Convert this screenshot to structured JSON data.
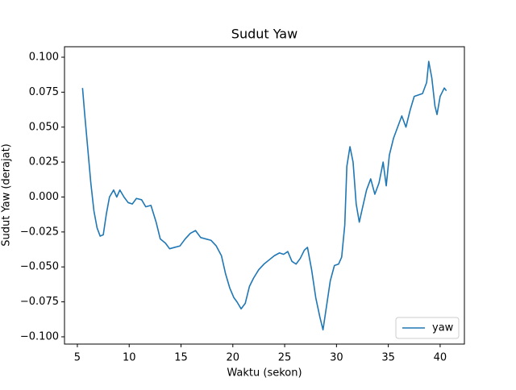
{
  "chart_data": {
    "type": "line",
    "title": "Sudut Yaw",
    "xlabel": "Waktu (sekon)",
    "ylabel": "Sudut Yaw (derajat)",
    "x": [
      5.5,
      5.7,
      6.0,
      6.3,
      6.6,
      6.9,
      7.2,
      7.5,
      7.8,
      8.1,
      8.5,
      8.8,
      9.1,
      9.5,
      9.9,
      10.3,
      10.7,
      11.2,
      11.6,
      12.1,
      12.6,
      13.0,
      13.5,
      13.9,
      14.4,
      14.9,
      15.4,
      15.9,
      16.4,
      16.9,
      17.4,
      17.9,
      18.4,
      18.9,
      19.3,
      19.7,
      20.1,
      20.4,
      20.8,
      21.2,
      21.6,
      22.0,
      22.5,
      23.0,
      23.5,
      24.0,
      24.5,
      24.9,
      25.3,
      25.7,
      26.1,
      26.5,
      26.9,
      27.2,
      27.6,
      28.0,
      28.4,
      28.7,
      29.0,
      29.4,
      29.8,
      30.2,
      30.5,
      30.8,
      31.0,
      31.3,
      31.6,
      31.9,
      32.2,
      32.5,
      32.9,
      33.3,
      33.7,
      34.1,
      34.5,
      34.8,
      35.1,
      35.5,
      35.9,
      36.3,
      36.7,
      37.1,
      37.5,
      37.9,
      38.3,
      38.7,
      38.9,
      39.2,
      39.5,
      39.7,
      40.0,
      40.4,
      40.6
    ],
    "series": [
      {
        "name": "yaw",
        "color": "#1f77b4",
        "values": [
          0.078,
          0.06,
          0.035,
          0.01,
          -0.01,
          -0.022,
          -0.028,
          -0.027,
          -0.012,
          0.0,
          0.005,
          0.0,
          0.005,
          0.0,
          -0.004,
          -0.005,
          -0.001,
          -0.002,
          -0.007,
          -0.006,
          -0.018,
          -0.03,
          -0.033,
          -0.037,
          -0.036,
          -0.035,
          -0.03,
          -0.026,
          -0.024,
          -0.029,
          -0.03,
          -0.031,
          -0.035,
          -0.042,
          -0.055,
          -0.065,
          -0.072,
          -0.075,
          -0.08,
          -0.076,
          -0.064,
          -0.058,
          -0.052,
          -0.048,
          -0.045,
          -0.042,
          -0.04,
          -0.041,
          -0.039,
          -0.046,
          -0.048,
          -0.044,
          -0.038,
          -0.036,
          -0.052,
          -0.072,
          -0.086,
          -0.095,
          -0.08,
          -0.06,
          -0.049,
          -0.048,
          -0.043,
          -0.02,
          0.022,
          0.036,
          0.025,
          -0.005,
          -0.018,
          -0.008,
          0.005,
          0.013,
          0.002,
          0.01,
          0.025,
          0.008,
          0.03,
          0.042,
          0.05,
          0.058,
          0.05,
          0.062,
          0.072,
          0.073,
          0.074,
          0.082,
          0.097,
          0.085,
          0.065,
          0.059,
          0.072,
          0.078,
          0.076
        ]
      }
    ],
    "xlim": [
      3.76,
      42.34
    ],
    "ylim": [
      -0.1052,
      0.1075
    ],
    "xticks": [
      5,
      10,
      15,
      20,
      25,
      30,
      35,
      40
    ],
    "yticks": [
      {
        "value": -0.1,
        "label": "−0.100"
      },
      {
        "value": -0.075,
        "label": "−0.075"
      },
      {
        "value": -0.05,
        "label": "−0.050"
      },
      {
        "value": -0.025,
        "label": "−0.025"
      },
      {
        "value": 0,
        "label": "0.000"
      },
      {
        "value": 0.025,
        "label": "0.025"
      },
      {
        "value": 0.05,
        "label": "0.050"
      },
      {
        "value": 0.075,
        "label": "0.075"
      },
      {
        "value": 0.1,
        "label": "0.100"
      }
    ],
    "legend": "lower right"
  }
}
